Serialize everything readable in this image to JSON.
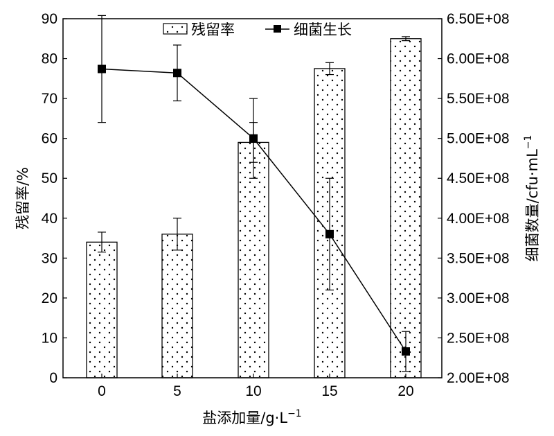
{
  "chart_data": {
    "type": "bar",
    "categories": [
      "0",
      "5",
      "10",
      "15",
      "20"
    ],
    "xlabel": "盐添加量/g·L",
    "xlabel_sup": "−1",
    "ylabel_left": "残留率/%",
    "ylabel_right": "细菌数量/cfu·mL",
    "ylabel_right_sup": "−1",
    "ylim_left": [
      0,
      90
    ],
    "ylim_right": [
      200000000,
      650000000
    ],
    "left_ticks": [
      "0",
      "10",
      "20",
      "30",
      "40",
      "50",
      "60",
      "70",
      "80",
      "90"
    ],
    "right_ticks": [
      "2.00E+08",
      "2.50E+08",
      "3.00E+08",
      "3.50E+08",
      "4.00E+08",
      "4.50E+08",
      "5.00E+08",
      "5.50E+08",
      "6.00E+08",
      "6.50E+08"
    ],
    "grid": false,
    "legend_position": "top",
    "series": [
      {
        "name": "残留率",
        "type": "bar",
        "axis": "left",
        "pattern": "dotted",
        "values": [
          34,
          36,
          59,
          77.5,
          85
        ],
        "errors": [
          2.5,
          4,
          5,
          1.5,
          0.5
        ]
      },
      {
        "name": "细菌生长",
        "type": "line",
        "axis": "right",
        "marker": "square",
        "values": [
          587000000,
          582000000,
          500000000,
          380000000,
          233000000
        ],
        "errors": [
          67000000,
          35000000,
          50000000,
          70000000,
          25000000
        ]
      }
    ]
  }
}
